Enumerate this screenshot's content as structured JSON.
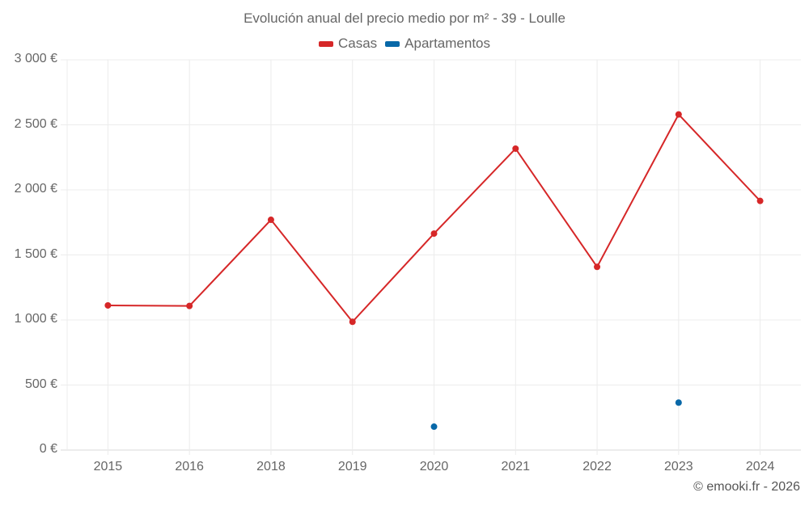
{
  "chart_data": {
    "type": "line",
    "title": "Evolución anual del precio medio por m² - 39 - Loulle",
    "xlabel": "",
    "ylabel": "",
    "categories": [
      "2015",
      "2016",
      "2018",
      "2019",
      "2020",
      "2021",
      "2022",
      "2023",
      "2024"
    ],
    "series": [
      {
        "name": "Casas",
        "color": "#d62728",
        "values": [
          1112,
          1108,
          1770,
          986,
          1664,
          2317,
          1408,
          2580,
          1915
        ]
      },
      {
        "name": "Apartamentos",
        "color": "#0868a8",
        "values": [
          null,
          null,
          null,
          null,
          180,
          null,
          null,
          365,
          null
        ]
      }
    ],
    "ylim": [
      0,
      3000
    ],
    "yticks": [
      0,
      500,
      1000,
      1500,
      2000,
      2500,
      3000
    ],
    "ytick_labels": [
      "0 €",
      "500 €",
      "1 000 €",
      "1 500 €",
      "2 000 €",
      "2 500 €",
      "3 000 €"
    ],
    "grid": true,
    "legend_position": "top"
  },
  "credit": "© emooki.fr - 2026"
}
